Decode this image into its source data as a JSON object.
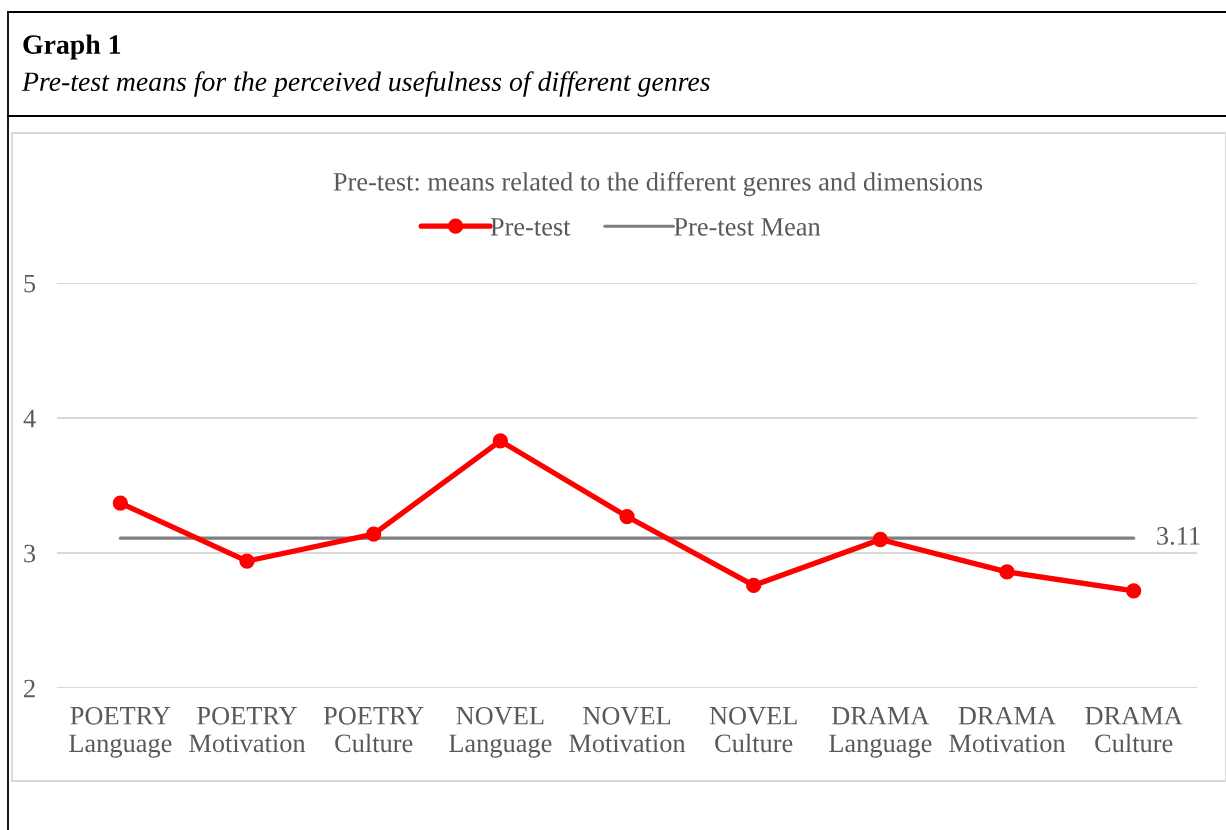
{
  "chart_data": {
    "type": "line",
    "title": "Graph 1",
    "subtitle": "Pre-test means for the perceived usefulness of different genres",
    "annotations": [
      "Pre-test: means related to the different genres and dimensions"
    ],
    "categories": [
      "POETRY Language",
      "POETRY Motivation",
      "POETRY Culture",
      "NOVEL Language",
      "NOVEL Motivation",
      "NOVEL Culture",
      "DRAMA Language",
      "DRAMA Motivation",
      "DRAMA Culture"
    ],
    "series": [
      {
        "name": "Pre-test",
        "color": "#ff0000",
        "marker": "circle",
        "values": [
          3.37,
          2.94,
          3.14,
          3.83,
          3.27,
          2.76,
          3.1,
          2.86,
          2.72
        ]
      },
      {
        "name": "Pre-test Mean",
        "color": "#7f7f7f",
        "marker": "none",
        "values": [
          3.11,
          3.11,
          3.11,
          3.11,
          3.11,
          3.11,
          3.11,
          3.11,
          3.11
        ],
        "value_labels": [
          null,
          null,
          null,
          null,
          null,
          null,
          null,
          null,
          "3.11"
        ]
      }
    ],
    "ylim": [
      2,
      5
    ],
    "yticks": [
      2,
      3,
      4,
      5
    ],
    "grid": "y",
    "legend": "top"
  }
}
